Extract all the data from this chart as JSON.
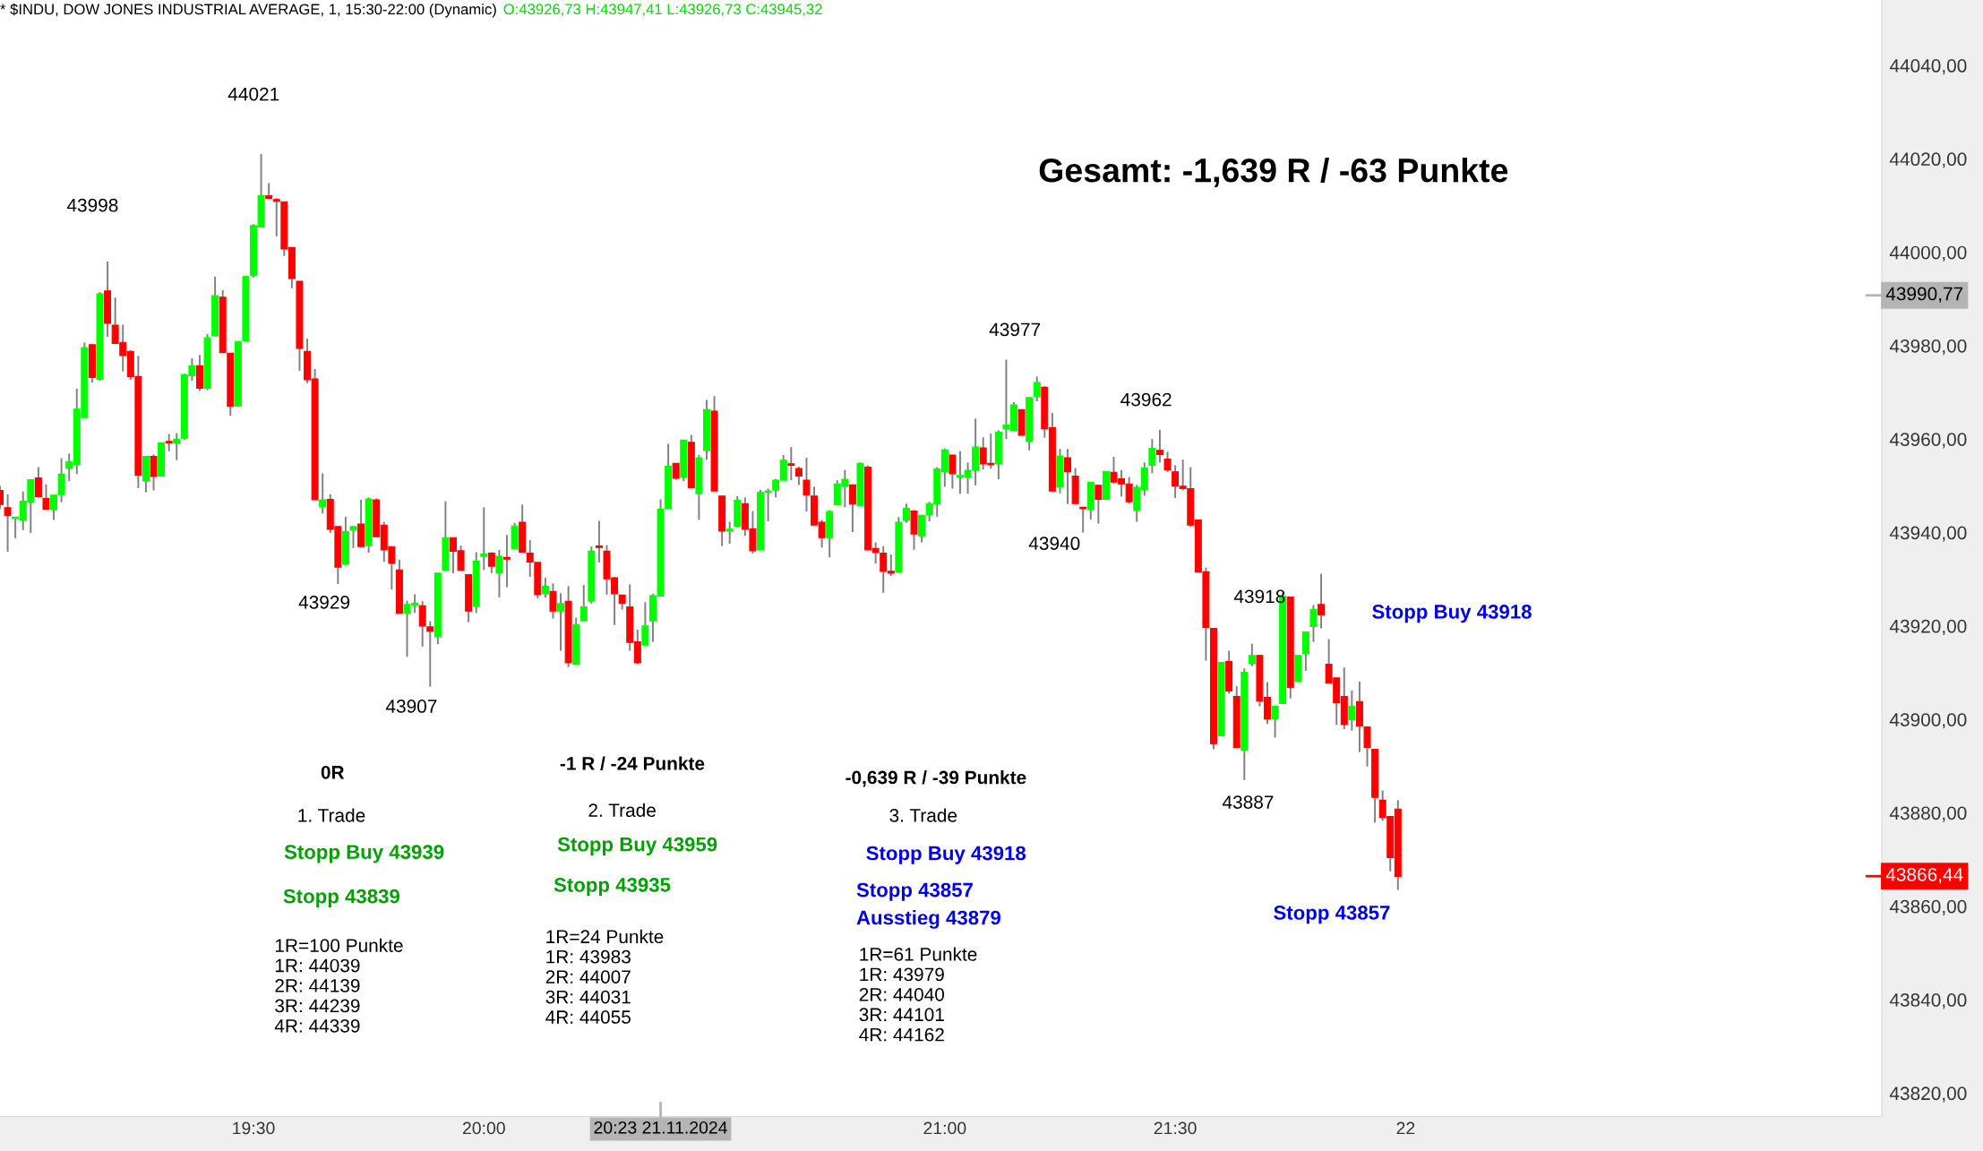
{
  "chart_data": {
    "type": "candlestick",
    "title": "* $INDU, DOW JONES INDUSTRIAL AVERAGE, 1, 15:30-22:00 (Dynamic)",
    "subtitle": "O:43926,73 H:43947,41 L:43926,73 C:43945,32",
    "colors": [
      "#ff0000",
      "#ff0000",
      "#00ff00",
      "#00ff00",
      "#00ff00",
      "#ff0000",
      "#ff0000",
      "#00ff00",
      "#00ff00",
      "#00ff00",
      "#00ff00",
      "#00ff00",
      "#ff0000",
      "#00ff00",
      "#ff0000",
      "#ff0000",
      "#ff0000",
      "#ff0000",
      "#ff0000",
      "#00ff00",
      "#ff0000",
      "#00ff00",
      "#ff0000",
      "#00ff00",
      "#00ff00",
      "#00ff00",
      "#ff0000",
      "#00ff00",
      "#00ff00",
      "#ff0000",
      "#ff0000",
      "#00ff00",
      "#00ff00",
      "#00ff00",
      "#00ff00",
      "#ff0000",
      "#ff0000",
      "#ff0000",
      "#ff0000",
      "#ff0000",
      "#ff0000",
      "#ff0000",
      "#00ff00",
      "#ff0000",
      "#ff0000",
      "#00ff00",
      "#00ff00",
      "#ff0000",
      "#00ff00",
      "#ff0000",
      "#ff0000",
      "#ff0000",
      "#ff0000",
      "#00ff00",
      "#00ff00",
      "#ff0000",
      "#ff0000",
      "#00ff00",
      "#00ff00",
      "#ff0000",
      "#ff0000",
      "#ff0000",
      "#00ff00",
      "#00ff00",
      "#ff0000",
      "#00ff00",
      "#ff0000",
      "#00ff00",
      "#ff0000",
      "#ff0000",
      "#ff0000",
      "#00ff00",
      "#ff0000",
      "#00ff00",
      "#ff0000",
      "#00ff00",
      "#00ff00",
      "#00ff00",
      "#ff0000",
      "#ff0000",
      "#ff0000",
      "#ff0000",
      "#ff0000",
      "#ff0000",
      "#00ff00",
      "#00ff00",
      "#00ff00",
      "#00ff00",
      "#ff0000",
      "#00ff00",
      "#ff0000",
      "#00ff00",
      "#00ff00",
      "#ff0000",
      "#ff0000",
      "#00ff00",
      "#00ff00",
      "#ff0000",
      "#ff0000",
      "#00ff00",
      "#00ff00",
      "#00ff00",
      "#00ff00",
      "#ff0000",
      "#ff0000",
      "#ff0000",
      "#ff0000",
      "#ff0000",
      "#00ff00",
      "#00ff00",
      "#00ff00",
      "#ff0000",
      "#00ff00",
      "#ff0000",
      "#ff0000",
      "#ff0000",
      "#ff0000",
      "#00ff00",
      "#00ff00",
      "#ff0000",
      "#00ff00",
      "#00ff00",
      "#00ff00",
      "#00ff00",
      "#ff0000",
      "#00ff00",
      "#00ff00",
      "#00ff00",
      "#ff0000",
      "#ff0000",
      "#00ff00",
      "#00ff00",
      "#00ff00",
      "#ff0000",
      "#00ff00",
      "#00ff00",
      "#ff0000",
      "#ff0000",
      "#00ff00",
      "#ff0000",
      "#ff0000",
      "#ff0000",
      "#00ff00",
      "#ff0000",
      "#00ff00",
      "#ff0000",
      "#ff0000",
      "#ff0000",
      "#00ff00",
      "#00ff00",
      "#00ff00",
      "#ff0000",
      "#ff0000",
      "#ff0000",
      "#ff0000",
      "#ff0000",
      "#ff0000",
      "#ff0000",
      "#ff0000",
      "#00ff00",
      "#ff0000",
      "#ff0000",
      "#00ff00",
      "#00ff00",
      "#ff0000",
      "#ff0000",
      "#00ff00",
      "#00ff00",
      "#ff0000",
      "#00ff00",
      "#00ff00",
      "#00ff00",
      "#ff0000",
      "#ff0000",
      "#ff0000",
      "#ff0000",
      "#00ff00",
      "#ff0000",
      "#ff0000",
      "#ff0000",
      "#ff0000",
      "#ff0000",
      "#ff0000"
    ],
    "x": [
      "2024-11-21T18:57",
      "2024-11-21T18:58",
      "2024-11-21T18:59",
      "2024-11-21T19:00",
      "2024-11-21T19:01",
      "2024-11-21T19:02",
      "2024-11-21T19:03",
      "2024-11-21T19:04",
      "2024-11-21T19:05",
      "2024-11-21T19:06",
      "2024-11-21T19:07",
      "2024-11-21T19:08",
      "2024-11-21T19:09",
      "2024-11-21T19:10",
      "2024-11-21T19:11",
      "2024-11-21T19:12",
      "2024-11-21T19:13",
      "2024-11-21T19:14",
      "2024-11-21T19:15",
      "2024-11-21T19:16",
      "2024-11-21T19:17",
      "2024-11-21T19:18",
      "2024-11-21T19:19",
      "2024-11-21T19:20",
      "2024-11-21T19:21",
      "2024-11-21T19:22",
      "2024-11-21T19:23",
      "2024-11-21T19:24",
      "2024-11-21T19:25",
      "2024-11-21T19:26",
      "2024-11-21T19:27",
      "2024-11-21T19:28",
      "2024-11-21T19:29",
      "2024-11-21T19:30",
      "2024-11-21T19:31",
      "2024-11-21T19:32",
      "2024-11-21T19:33",
      "2024-11-21T19:34",
      "2024-11-21T19:35",
      "2024-11-21T19:36",
      "2024-11-21T19:37",
      "2024-11-21T19:38",
      "2024-11-21T19:39",
      "2024-11-21T19:40",
      "2024-11-21T19:41",
      "2024-11-21T19:42",
      "2024-11-21T19:43",
      "2024-11-21T19:44",
      "2024-11-21T19:45",
      "2024-11-21T19:46",
      "2024-11-21T19:47",
      "2024-11-21T19:48",
      "2024-11-21T19:49",
      "2024-11-21T19:50",
      "2024-11-21T19:51",
      "2024-11-21T19:52",
      "2024-11-21T19:53",
      "2024-11-21T19:54",
      "2024-11-21T19:55",
      "2024-11-21T19:56",
      "2024-11-21T19:57",
      "2024-11-21T19:58",
      "2024-11-21T19:59",
      "2024-11-21T20:00",
      "2024-11-21T20:01",
      "2024-11-21T20:02",
      "2024-11-21T20:03",
      "2024-11-21T20:04",
      "2024-11-21T20:05",
      "2024-11-21T20:06",
      "2024-11-21T20:07",
      "2024-11-21T20:08",
      "2024-11-21T20:09",
      "2024-11-21T20:10",
      "2024-11-21T20:11",
      "2024-11-21T20:12",
      "2024-11-21T20:13",
      "2024-11-21T20:14",
      "2024-11-21T20:15",
      "2024-11-21T20:16",
      "2024-11-21T20:17",
      "2024-11-21T20:18",
      "2024-11-21T20:19",
      "2024-11-21T20:20",
      "2024-11-21T20:21",
      "2024-11-21T20:22",
      "2024-11-21T20:23",
      "2024-11-21T20:24",
      "2024-11-21T20:25",
      "2024-11-21T20:26",
      "2024-11-21T20:27",
      "2024-11-21T20:28",
      "2024-11-21T20:29",
      "2024-11-21T20:30",
      "2024-11-21T20:31",
      "2024-11-21T20:32",
      "2024-11-21T20:33",
      "2024-11-21T20:34",
      "2024-11-21T20:35",
      "2024-11-21T20:36",
      "2024-11-21T20:37",
      "2024-11-21T20:38",
      "2024-11-21T20:39",
      "2024-11-21T20:40",
      "2024-11-21T20:41",
      "2024-11-21T20:42",
      "2024-11-21T20:43",
      "2024-11-21T20:44",
      "2024-11-21T20:45",
      "2024-11-21T20:46",
      "2024-11-21T20:47",
      "2024-11-21T20:48",
      "2024-11-21T20:49",
      "2024-11-21T20:50",
      "2024-11-21T20:51",
      "2024-11-21T20:52",
      "2024-11-21T20:53",
      "2024-11-21T20:54",
      "2024-11-21T20:55",
      "2024-11-21T20:56",
      "2024-11-21T20:57",
      "2024-11-21T20:58",
      "2024-11-21T20:59",
      "2024-11-21T21:00",
      "2024-11-21T21:01",
      "2024-11-21T21:02",
      "2024-11-21T21:03",
      "2024-11-21T21:04",
      "2024-11-21T21:05",
      "2024-11-21T21:06",
      "2024-11-21T21:07",
      "2024-11-21T21:08",
      "2024-11-21T21:09",
      "2024-11-21T21:10",
      "2024-11-21T21:11",
      "2024-11-21T21:12",
      "2024-11-21T21:13",
      "2024-11-21T21:14",
      "2024-11-21T21:15",
      "2024-11-21T21:16",
      "2024-11-21T21:17",
      "2024-11-21T21:18",
      "2024-11-21T21:19",
      "2024-11-21T21:20",
      "2024-11-21T21:21",
      "2024-11-21T21:22",
      "2024-11-21T21:23",
      "2024-11-21T21:24",
      "2024-11-21T21:25",
      "2024-11-21T21:26",
      "2024-11-21T21:27",
      "2024-11-21T21:28",
      "2024-11-21T21:29",
      "2024-11-21T21:30",
      "2024-11-21T21:31",
      "2024-11-21T21:32",
      "2024-11-21T21:33",
      "2024-11-21T21:34",
      "2024-11-21T21:35",
      "2024-11-21T21:36",
      "2024-11-21T21:37",
      "2024-11-21T21:38",
      "2024-11-21T21:39",
      "2024-11-21T21:40",
      "2024-11-21T21:41",
      "2024-11-21T21:42",
      "2024-11-21T21:43",
      "2024-11-21T21:44",
      "2024-11-21T21:45",
      "2024-11-21T21:46",
      "2024-11-21T21:47",
      "2024-11-21T21:48",
      "2024-11-21T21:49",
      "2024-11-21T21:50",
      "2024-11-21T21:51",
      "2024-11-21T21:52",
      "2024-11-21T21:53",
      "2024-11-21T21:54",
      "2024-11-21T21:55",
      "2024-11-21T21:56",
      "2024-11-21T21:57",
      "2024-11-21T21:58",
      "2024-11-21T21:59"
    ],
    "ohlc": [
      [
        43949,
        43950,
        43945,
        43946
      ],
      [
        43945.3,
        43948.2,
        43935.9,
        43943.6
      ],
      [
        43943,
        43943.3,
        43938.8,
        43943.3
      ],
      [
        43942.7,
        43948.8,
        43940.5,
        43946.7
      ],
      [
        43946.5,
        43951.3,
        43939.9,
        43951.3
      ],
      [
        43951.7,
        43954,
        43947.5,
        43947.7
      ],
      [
        43947.3,
        43950.3,
        43945,
        43945
      ],
      [
        43945,
        43948,
        43942.7,
        43948
      ],
      [
        43948.1,
        43955.9,
        43946.5,
        43952.5
      ],
      [
        43953.8,
        43956.9,
        43951,
        43955.2
      ],
      [
        43954.6,
        43970.8,
        43952.5,
        43966.4
      ],
      [
        43964.6,
        43980.7,
        43964.6,
        43979.6
      ],
      [
        43980.2,
        43980.4,
        43972.1,
        43973.2
      ],
      [
        43972.8,
        43991.5,
        43972.5,
        43991.1
      ],
      [
        43991.7,
        43998,
        43981.9,
        43984.8
      ],
      [
        43984.4,
        43990.3,
        43980.5,
        43980.5
      ],
      [
        43980.7,
        43984.5,
        43974.5,
        43977.9
      ],
      [
        43978.8,
        43979,
        43972.7,
        43973.4
      ],
      [
        43973.4,
        43977.8,
        43949.5,
        43952.3
      ],
      [
        43951.1,
        43956.3,
        43948.6,
        43956.3
      ],
      [
        43956.3,
        43956.7,
        43949,
        43952
      ],
      [
        43952.1,
        43959.2,
        43952,
        43959.2
      ],
      [
        43959.5,
        43961.1,
        43957.4,
        43959.2
      ],
      [
        43959.2,
        43961.3,
        43955.5,
        43960
      ],
      [
        43960.2,
        43974,
        43959.8,
        43973.8
      ],
      [
        43973.6,
        43977.3,
        43972.5,
        43975.7
      ],
      [
        43975.7,
        43978,
        43970.3,
        43970.9
      ],
      [
        43970.9,
        43982.5,
        43970.5,
        43981.7
      ],
      [
        43982.1,
        43994.8,
        43982,
        43990.7
      ],
      [
        43990.4,
        43991.9,
        43978.5,
        43978.5
      ],
      [
        43978.4,
        43978.4,
        43965,
        43967
      ],
      [
        43967.1,
        43981,
        43967,
        43980.9
      ],
      [
        43981,
        43995,
        43981,
        43994.8
      ],
      [
        43995,
        44006,
        43994.6,
        44005.7
      ],
      [
        44005.4,
        44021,
        44005.4,
        44012.1
      ],
      [
        44012.1,
        44014.8,
        44011.4,
        44011.5
      ],
      [
        44011.3,
        44011.6,
        44003.4,
        44010.9
      ],
      [
        44010.8,
        44010.8,
        43999.2,
        44000.7
      ],
      [
        44001,
        44001,
        43992.3,
        43994.4
      ],
      [
        43993.8,
        43993.8,
        43974.6,
        43979.4
      ],
      [
        43978.8,
        43981.5,
        43972,
        43972.7
      ],
      [
        43972.9,
        43975,
        43947,
        43947
      ],
      [
        43945.5,
        43952.7,
        43944.1,
        43947
      ],
      [
        43947.1,
        43948.2,
        43939.9,
        43940.7
      ],
      [
        43941.3,
        43941.3,
        43929,
        43932.6
      ],
      [
        43933.2,
        43943.4,
        43933,
        43940.2
      ],
      [
        43940.5,
        43941.3,
        43936.7,
        43941.3
      ],
      [
        43941.8,
        43947,
        43936.8,
        43937
      ],
      [
        43937.2,
        43947.5,
        43935.7,
        43947.2
      ],
      [
        43947,
        43947.3,
        43939,
        43939.1
      ],
      [
        43941.6,
        43942.3,
        43933.7,
        43936.3
      ],
      [
        43937,
        43937,
        43927.8,
        43933.4
      ],
      [
        43932,
        43934.2,
        43922.7,
        43922.7
      ],
      [
        43922.7,
        43925.4,
        43913.4,
        43924.6
      ],
      [
        43924.4,
        43926.8,
        43922.8,
        43924.9
      ],
      [
        43924.3,
        43925.3,
        43915.6,
        43920
      ],
      [
        43919.8,
        43921,
        43907,
        43918.9
      ],
      [
        43917.7,
        43931.3,
        43916.1,
        43931.3
      ],
      [
        43931.9,
        43946.7,
        43931.9,
        43938.9
      ],
      [
        43938.9,
        43938.9,
        43931.3,
        43936
      ],
      [
        43936.1,
        43937.2,
        43931.9,
        43931.9
      ],
      [
        43931,
        43931,
        43920.8,
        43923.2
      ],
      [
        43924.2,
        43935.8,
        43922.8,
        43933.9
      ],
      [
        43934.9,
        43945.4,
        43932,
        43935.4
      ],
      [
        43935.6,
        43935.8,
        43931.3,
        43932.8
      ],
      [
        43931.3,
        43936.3,
        43926.1,
        43934.9
      ],
      [
        43934.7,
        43939.5,
        43928.3,
        43934.3
      ],
      [
        43936.5,
        43942.1,
        43936.5,
        43941.4
      ],
      [
        43942.2,
        43946,
        43935.8,
        43935.8
      ],
      [
        43935.6,
        43938.4,
        43930.5,
        43933.7
      ],
      [
        43933.6,
        43933.6,
        43925.9,
        43926.7
      ],
      [
        43926.9,
        43930.3,
        43926.1,
        43928.5
      ],
      [
        43927.4,
        43929.1,
        43921.6,
        43923.2
      ],
      [
        43923.2,
        43927,
        43914.7,
        43924.8
      ],
      [
        43925.3,
        43928.5,
        43911.2,
        43912.1
      ],
      [
        43911.8,
        43921.8,
        43911.8,
        43920.3
      ],
      [
        43921.1,
        43928.8,
        43921.1,
        43924.1
      ],
      [
        43925.3,
        43937,
        43924.8,
        43936
      ],
      [
        43937.1,
        43942.5,
        43933.6,
        43936.8
      ],
      [
        43936,
        43937.3,
        43926.7,
        43930.1
      ],
      [
        43930.3,
        43930.5,
        43920.2,
        43926.9
      ],
      [
        43926.6,
        43926.6,
        43923.5,
        43924.8
      ],
      [
        43924.1,
        43928.9,
        43914.7,
        43916.5
      ],
      [
        43916.6,
        43919.2,
        43911.8,
        43912.1
      ],
      [
        43915.9,
        43925.1,
        43915.9,
        43920
      ],
      [
        43921.1,
        43926.9,
        43916.6,
        43926.5
      ],
      [
        43926.4,
        43947.1,
        43926.4,
        43945
      ],
      [
        43945.1,
        43959,
        43945.1,
        43954.2
      ],
      [
        43954.8,
        43954.8,
        43951.3,
        43951.6
      ],
      [
        43951.8,
        43959.8,
        43951,
        43959.8
      ],
      [
        43959.3,
        43960.9,
        43949.6,
        43949.6
      ],
      [
        43948.3,
        43956.6,
        43942.7,
        43956
      ],
      [
        43957.6,
        43968.4,
        43955.6,
        43966.3
      ],
      [
        43966,
        43969.2,
        43948.9,
        43948.9
      ],
      [
        43947.8,
        43947.8,
        43937.1,
        43940.3
      ],
      [
        43940.3,
        43942.3,
        43937.6,
        43940.7
      ],
      [
        43941.3,
        43947.8,
        43941.1,
        43946.9
      ],
      [
        43946.2,
        43947.5,
        43939.3,
        43940.7
      ],
      [
        43940.8,
        43944.6,
        43935.5,
        43936.1
      ],
      [
        43936.3,
        43949.1,
        43936.3,
        43948.6
      ],
      [
        43948.6,
        43949.4,
        43942.4,
        43948.9
      ],
      [
        43949.1,
        43951.5,
        43947.5,
        43951.2
      ],
      [
        43951.2,
        43956.6,
        43951.2,
        43955.5
      ],
      [
        43954.7,
        43958.3,
        43951.2,
        43954.4
      ],
      [
        43953.7,
        43954.1,
        43950.2,
        43952.1
      ],
      [
        43951.2,
        43956,
        43944.5,
        43948
      ],
      [
        43947.8,
        43949.8,
        43941.6,
        43941.6
      ],
      [
        43942.2,
        43942.7,
        43936.8,
        43938.9
      ],
      [
        43938.9,
        43944.8,
        43934.7,
        43944.5
      ],
      [
        43945.9,
        43951.2,
        43945.9,
        43950.4
      ],
      [
        43949.9,
        43953.4,
        43945.4,
        43951.4
      ],
      [
        43950.2,
        43950.2,
        43940.1,
        43946.1
      ],
      [
        43945.7,
        43955,
        43945.7,
        43954.8
      ],
      [
        43954,
        43954.4,
        43936.3,
        43936.3
      ],
      [
        43936.6,
        43937.9,
        43933.4,
        43935.7
      ],
      [
        43935.6,
        43937.1,
        43927.1,
        43931.7
      ],
      [
        43931.7,
        43935.3,
        43930.7,
        43931.3
      ],
      [
        43931.5,
        43943.3,
        43931.5,
        43942.2
      ],
      [
        43942.7,
        43946.2,
        43942.1,
        43945.2
      ],
      [
        43944.6,
        43944.8,
        43936.3,
        43939.7
      ],
      [
        43939.3,
        43943.7,
        43937.9,
        43943.7
      ],
      [
        43943.8,
        43946.6,
        43942.4,
        43946.2
      ],
      [
        43946.1,
        43954,
        43943.4,
        43953.6
      ],
      [
        43953,
        43958,
        43949.8,
        43957.7
      ],
      [
        43956.6,
        43956.6,
        43949.4,
        43952.6
      ],
      [
        43951.9,
        43957.4,
        43948.3,
        43952.2
      ],
      [
        43951.8,
        43955,
        43948.3,
        43953.3
      ],
      [
        43953.3,
        43964.4,
        43950.1,
        43958.3
      ],
      [
        43958.1,
        43960.4,
        43953.5,
        43954.7
      ],
      [
        43954.8,
        43961.2,
        43953.7,
        43954.5
      ],
      [
        43954.7,
        43961.9,
        43951.4,
        43961.5
      ],
      [
        43962.2,
        43977,
        43960,
        43963
      ],
      [
        43961.8,
        43967.9,
        43961.8,
        43967.3
      ],
      [
        43966.3,
        43966.3,
        43960.8,
        43960.8
      ],
      [
        43959.6,
        43968.9,
        43957.6,
        43968.9
      ],
      [
        43969.1,
        43973.4,
        43968.1,
        43972.1
      ],
      [
        43971.1,
        43971.3,
        43960.3,
        43962.2
      ],
      [
        43962.5,
        43965.6,
        43948.9,
        43948.9
      ],
      [
        43949.7,
        43957.9,
        43948.4,
        43956.4
      ],
      [
        43956,
        43957.9,
        43946.1,
        43953
      ],
      [
        43952.1,
        43953.8,
        43946.2,
        43946.2
      ],
      [
        43945.4,
        43945.5,
        43940,
        43945.1
      ],
      [
        43945,
        43950.8,
        43942.8,
        43950.8
      ],
      [
        43950.1,
        43950.3,
        43941.9,
        43947.1
      ],
      [
        43947.1,
        43953.1,
        43947.1,
        43953.1
      ],
      [
        43952.9,
        43956.2,
        43950.5,
        43950.8
      ],
      [
        43951.5,
        43953.4,
        43947.7,
        43950.4
      ],
      [
        43950.4,
        43951.9,
        43946.2,
        43946.6
      ],
      [
        43944.7,
        43950.2,
        43942.3,
        43949.7
      ],
      [
        43949.2,
        43955,
        43947.9,
        43953.8
      ],
      [
        43954.4,
        43960,
        43952.7,
        43958
      ],
      [
        43957.6,
        43962,
        43955,
        43956.7
      ],
      [
        43955.7,
        43957.3,
        43953,
        43953.4
      ],
      [
        43953,
        43954.4,
        43947.4,
        43950
      ],
      [
        43949.9,
        43955.6,
        43949,
        43949.4
      ],
      [
        43949.4,
        43954,
        43941.3,
        43941.6
      ],
      [
        43942.7,
        43942.7,
        43931.6,
        43931.6
      ],
      [
        43931.6,
        43932.5,
        43912.6,
        43919.7
      ],
      [
        43919.5,
        43919.5,
        43893.6,
        43894.8
      ],
      [
        43896.5,
        43912.2,
        43896.5,
        43912.2
      ],
      [
        43912.4,
        43914.7,
        43905.5,
        43906.1
      ],
      [
        43904.9,
        43907.1,
        43894,
        43894
      ],
      [
        43893.4,
        43910.9,
        43887,
        43910.1
      ],
      [
        43912,
        43916.2,
        43911.4,
        43913.7
      ],
      [
        43913.7,
        43913.7,
        43902.8,
        43903.9
      ],
      [
        43904.7,
        43908,
        43899,
        43900.1
      ],
      [
        43900.1,
        43902.8,
        43896.1,
        43902.8
      ],
      [
        43903.4,
        43927.2,
        43903.4,
        43926.4
      ],
      [
        43926.2,
        43926.2,
        43904.5,
        43906.8
      ],
      [
        43908.1,
        43913.7,
        43908.1,
        43913.7
      ],
      [
        43914.1,
        43918.7,
        43910.4,
        43918.7
      ],
      [
        43919.9,
        43924.5,
        43916.6,
        43923.5
      ],
      [
        43924.6,
        43931.2,
        43919.5,
        43922.4
      ],
      [
        43911.8,
        43917.2,
        43907.8,
        43907.8
      ],
      [
        43908.9,
        43908.9,
        43898.8,
        43903.6
      ],
      [
        43904.9,
        43911.1,
        43897.9,
        43898.9
      ],
      [
        43899.9,
        43906.2,
        43897.6,
        43902.8
      ],
      [
        43903.8,
        43908.1,
        43893,
        43898.6
      ],
      [
        43898.4,
        43898.4,
        43889.9,
        43894
      ],
      [
        43893.6,
        43893.6,
        43877.9,
        43883.3
      ],
      [
        43882.7,
        43884.8,
        43878.3,
        43879
      ],
      [
        43879.2,
        43879.2,
        43867.5,
        43870.4
      ],
      [
        43880.8,
        43882.7,
        43863.5,
        43866.4
      ]
    ],
    "xlim": [
      "2024-11-21T18:57",
      "2024-11-21T23:02"
    ],
    "xticks": [
      {
        "value": "2024-11-21T19:30",
        "label": "19:30"
      },
      {
        "value": "2024-11-21T20:00",
        "label": "20:00"
      },
      {
        "value": "2024-11-21T21:00",
        "label": "21:00"
      },
      {
        "value": "2024-11-21T21:30",
        "label": "21:30"
      },
      {
        "value": "2024-11-21T22:00",
        "label": "22"
      }
    ],
    "ylim": [
      43815,
      44054
    ],
    "yticks": [
      {
        "value": 43820,
        "label": "43820,00"
      },
      {
        "value": 43840,
        "label": "43840,00"
      },
      {
        "value": 43860,
        "label": "43860,00"
      },
      {
        "value": 43880,
        "label": "43880,00"
      },
      {
        "value": 43900,
        "label": "43900,00"
      },
      {
        "value": 43920,
        "label": "43920,00"
      },
      {
        "value": 43940,
        "label": "43940,00"
      },
      {
        "value": 43960,
        "label": "43960,00"
      },
      {
        "value": 43980,
        "label": "43980,00"
      },
      {
        "value": 44000,
        "label": "44000,00"
      },
      {
        "value": 44020,
        "label": "44020,00"
      },
      {
        "value": 44040,
        "label": "44040,00"
      }
    ],
    "ref_lines": [
      {
        "axis": "y",
        "value": 43990.77,
        "label": "43990,77",
        "color": "#b4b4b4"
      },
      {
        "axis": "y",
        "value": 43866.44,
        "label": "43866,44",
        "color": "#ff0000"
      },
      {
        "axis": "x",
        "value": "2024-11-21T20:23",
        "label": "20:23 21.11.2024",
        "color": "#b4b4b4"
      }
    ],
    "annotations": [
      {
        "text": "44021",
        "x": "2024-11-21T19:31",
        "y": 44021
      },
      {
        "text": "43998",
        "x": "2024-11-21T19:11",
        "y": 43998
      },
      {
        "text": "43929",
        "x": "2024-11-21T19:41",
        "y": 43929
      },
      {
        "text": "43907",
        "x": "2024-11-21T19:53",
        "y": 43907
      },
      {
        "text": "43977",
        "x": "2024-11-21T21:08",
        "y": 43977
      },
      {
        "text": "43962",
        "x": "2024-11-21T21:28",
        "y": 43962
      },
      {
        "text": "43940",
        "x": "2024-11-21T21:18",
        "y": 43940
      },
      {
        "text": "43918",
        "x": "2024-11-21T21:35",
        "y": 43918
      },
      {
        "text": "43887",
        "x": "2024-11-21T21:39",
        "y": 43887
      },
      "Gesamt: -1,639 R / -63 Punkte",
      "0R",
      "1. Trade",
      "Stopp Buy 43939",
      "Stopp 43839",
      "1R=100 Punkte\n1R: 44039\n2R: 44139\n3R: 44239\n4R: 44339",
      "-1 R / -24 Punkte",
      "2. Trade",
      "Stopp Buy 43959",
      "Stopp 43935",
      "1R=24 Punkte\n1R: 43983\n2R: 44007\n3R: 44031\n4R: 44055",
      "-0,639 R / -39 Punkte",
      "3. Trade",
      "Stopp Buy 43918",
      "Stopp 43857",
      "Ausstieg 43879",
      "1R=61 Punkte\n1R: 43979\n2R: 44040\n3R: 44101\n4R: 44162",
      "Stopp Buy 43918",
      "Stopp 43857"
    ]
  }
}
